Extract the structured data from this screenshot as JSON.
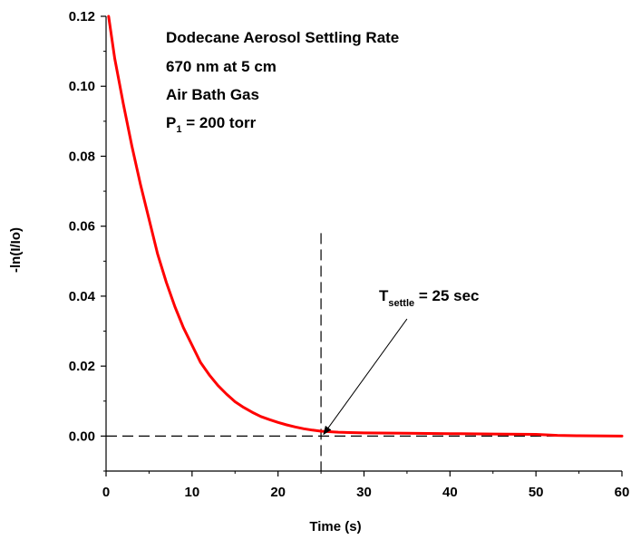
{
  "chart_data": {
    "type": "line",
    "xlabel": "Time (s)",
    "ylabel": "-ln(I/Io)",
    "xlim": [
      0,
      60
    ],
    "ylim": [
      -0.01,
      0.12
    ],
    "x_ticks": [
      0,
      10,
      20,
      30,
      40,
      50,
      60
    ],
    "x_tick_labels": [
      "0",
      "10",
      "20",
      "30",
      "40",
      "50",
      "60"
    ],
    "y_ticks": [
      0.0,
      0.02,
      0.04,
      0.06,
      0.08,
      0.1,
      0.12
    ],
    "y_tick_labels": [
      "0.00",
      "0.02",
      "0.04",
      "0.06",
      "0.08",
      "0.10",
      "0.12"
    ],
    "grid": false,
    "series": [
      {
        "color": "#ff0000",
        "x": [
          0.3,
          1,
          2,
          3,
          4,
          5,
          6,
          7,
          8,
          9,
          10,
          11,
          12,
          13,
          14,
          15,
          16,
          17,
          18,
          19,
          20,
          21,
          22,
          23,
          24,
          25,
          27,
          30,
          35,
          40,
          45,
          50,
          52.5,
          55,
          60
        ],
        "y": [
          0.12,
          0.108,
          0.095,
          0.083,
          0.072,
          0.062,
          0.052,
          0.044,
          0.037,
          0.031,
          0.026,
          0.021,
          0.0175,
          0.0145,
          0.012,
          0.0098,
          0.0082,
          0.0068,
          0.0056,
          0.0047,
          0.0039,
          0.0032,
          0.0026,
          0.0021,
          0.0017,
          0.0014,
          0.0011,
          0.0009,
          0.0008,
          0.0007,
          0.0006,
          0.0005,
          0.0002,
          0.0001,
          0.0
        ]
      }
    ],
    "reference_lines": [
      {
        "orientation": "vertical",
        "x": 25,
        "y_top": 0.058,
        "style": "dashed"
      },
      {
        "orientation": "horizontal",
        "y": 0.0,
        "style": "dashed"
      }
    ],
    "annotations": {
      "title_lines": [
        "Dodecane Aerosol Settling Rate",
        "670 nm at 5 cm",
        "Air Bath Gas"
      ],
      "pressure": {
        "main": "P",
        "sub": "1",
        "rest": " = 200 torr"
      },
      "settle": {
        "main": "T",
        "sub": "settle",
        "rest": " = 25 sec"
      },
      "arrow": {
        "from_x": 35,
        "from_y": 0.0335,
        "to_x": 25.3,
        "to_y": 0.0005
      }
    }
  }
}
